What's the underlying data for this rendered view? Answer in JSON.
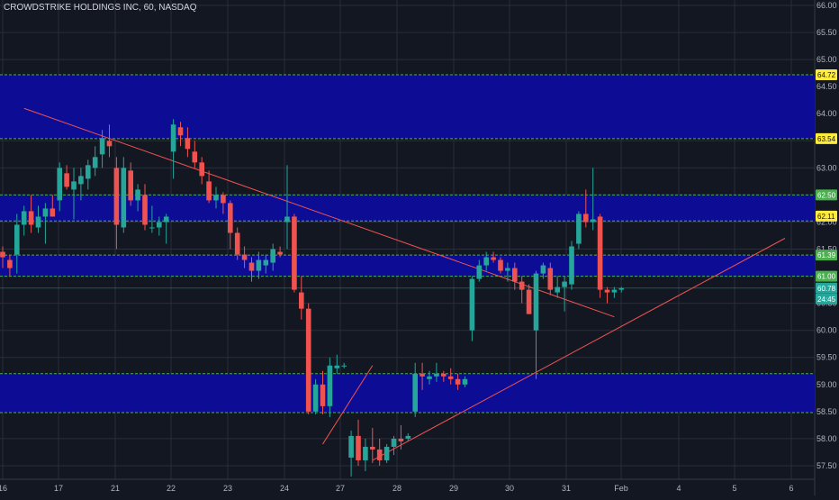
{
  "header": {
    "symbol_title": "CROWDSTRIKE HOLDINGS INC, 60, NASDAQ"
  },
  "colors": {
    "background": "#131722",
    "grid": "#2a2e39",
    "zone": "#0c0c9c",
    "up": "#26a69a",
    "down": "#ef5350",
    "trendline": "#ef5350",
    "level_line": "#4caf50",
    "tag_yellow": "#ffeb3b",
    "tag_green": "#4caf50",
    "tag_teal": "#26a69a"
  },
  "chart_data": {
    "type": "candlestick",
    "x_labels": [
      "16",
      "17",
      "21",
      "22",
      "23",
      "24",
      "27",
      "28",
      "29",
      "30",
      "31",
      "Feb",
      "4",
      "5",
      "6"
    ],
    "y_ticks": [
      "57.50",
      "58.00",
      "58.50",
      "59.00",
      "59.50",
      "60.00",
      "60.50",
      "61.00",
      "61.50",
      "62.00",
      "62.50",
      "63.00",
      "63.50",
      "64.00",
      "64.50",
      "65.00",
      "65.50",
      "66.00"
    ],
    "ylim": [
      57.25,
      66.1
    ],
    "zones": [
      {
        "top": 64.72,
        "bottom": 63.54
      },
      {
        "top": 62.5,
        "bottom": 62.02
      },
      {
        "top": 61.39,
        "bottom": 61.0
      },
      {
        "top": 59.2,
        "bottom": 58.48
      }
    ],
    "price_tags": [
      {
        "label": "64.72",
        "value": 64.72,
        "style": "yellow"
      },
      {
        "label": "63.54",
        "value": 63.54,
        "style": "yellow"
      },
      {
        "label": "62.50",
        "value": 62.5,
        "style": "green"
      },
      {
        "label": "62.11",
        "value": 62.11,
        "style": "yellow"
      },
      {
        "label": "61.39",
        "value": 61.39,
        "style": "green"
      },
      {
        "label": "61.00",
        "value": 61.0,
        "style": "green"
      },
      {
        "label": "60.78",
        "value": 60.78,
        "style": "teal"
      },
      {
        "label": "24:45",
        "value": 60.58,
        "style": "teal"
      }
    ],
    "candles": [
      [
        61.45,
        61.55,
        61.15,
        61.35
      ],
      [
        61.3,
        61.4,
        61.0,
        61.15
      ],
      [
        61.4,
        62.15,
        61.05,
        61.95
      ],
      [
        61.95,
        62.3,
        61.75,
        62.2
      ],
      [
        62.2,
        62.5,
        61.8,
        61.95
      ],
      [
        61.9,
        62.3,
        61.8,
        62.1
      ],
      [
        62.1,
        62.35,
        61.6,
        62.25
      ],
      [
        62.25,
        62.5,
        62.1,
        62.1
      ],
      [
        62.4,
        63.1,
        62.2,
        63.0
      ],
      [
        62.9,
        63.05,
        62.6,
        62.65
      ],
      [
        62.6,
        63.0,
        62.05,
        62.75
      ],
      [
        62.7,
        63.0,
        62.4,
        62.85
      ],
      [
        62.8,
        63.15,
        62.6,
        63.05
      ],
      [
        63.0,
        63.4,
        62.85,
        63.2
      ],
      [
        63.25,
        63.7,
        63.0,
        63.55
      ],
      [
        63.5,
        63.8,
        63.2,
        63.4
      ],
      [
        63.0,
        63.2,
        61.5,
        61.95
      ],
      [
        61.9,
        63.2,
        61.8,
        63.0
      ],
      [
        62.95,
        63.1,
        62.3,
        62.4
      ],
      [
        62.4,
        62.7,
        62.2,
        62.6
      ],
      [
        62.5,
        62.7,
        61.85,
        61.95
      ],
      [
        61.9,
        62.3,
        61.8,
        61.9
      ],
      [
        61.9,
        62.1,
        61.75,
        62.0
      ],
      [
        62.0,
        62.15,
        61.6,
        62.1
      ],
      [
        63.3,
        63.9,
        62.8,
        63.8
      ],
      [
        63.75,
        63.85,
        63.4,
        63.6
      ],
      [
        63.55,
        63.75,
        63.2,
        63.35
      ],
      [
        63.3,
        63.5,
        63.0,
        63.1
      ],
      [
        63.1,
        63.2,
        62.7,
        62.85
      ],
      [
        62.75,
        62.95,
        62.35,
        62.4
      ],
      [
        62.4,
        62.65,
        62.25,
        62.5
      ],
      [
        62.5,
        62.55,
        62.15,
        62.35
      ],
      [
        62.35,
        62.4,
        61.5,
        61.8
      ],
      [
        61.8,
        61.9,
        61.3,
        61.4
      ],
      [
        61.4,
        61.55,
        61.15,
        61.3
      ],
      [
        61.25,
        61.35,
        60.9,
        61.1
      ],
      [
        61.1,
        61.45,
        60.95,
        61.3
      ],
      [
        61.2,
        61.4,
        61.05,
        61.3
      ],
      [
        61.25,
        61.6,
        61.1,
        61.5
      ],
      [
        61.45,
        61.55,
        61.35,
        61.4
      ],
      [
        62.0,
        63.05,
        61.5,
        62.1
      ],
      [
        62.1,
        62.15,
        60.7,
        60.75
      ],
      [
        60.7,
        61.0,
        60.2,
        60.4
      ],
      [
        60.4,
        60.5,
        58.45,
        58.5
      ],
      [
        58.5,
        59.1,
        58.45,
        59.0
      ],
      [
        59.0,
        59.25,
        58.45,
        58.6
      ],
      [
        58.6,
        59.5,
        58.4,
        59.35
      ],
      [
        59.3,
        59.55,
        59.2,
        59.35
      ],
      [
        59.35,
        59.4,
        59.3,
        59.35
      ],
      [
        57.65,
        58.15,
        57.3,
        58.05
      ],
      [
        58.05,
        58.35,
        57.5,
        57.6
      ],
      [
        57.6,
        58.0,
        57.4,
        57.85
      ],
      [
        57.85,
        58.2,
        57.55,
        57.8
      ],
      [
        57.8,
        58.0,
        57.5,
        57.6
      ],
      [
        57.6,
        57.9,
        57.55,
        57.85
      ],
      [
        57.85,
        58.05,
        57.7,
        58.0
      ],
      [
        58.0,
        58.25,
        57.8,
        57.95
      ],
      [
        58.0,
        58.1,
        57.95,
        58.05
      ],
      [
        58.5,
        59.4,
        58.4,
        59.2
      ],
      [
        59.2,
        59.4,
        58.9,
        59.15
      ],
      [
        59.1,
        59.25,
        59.0,
        59.15
      ],
      [
        59.15,
        59.4,
        59.05,
        59.2
      ],
      [
        59.2,
        59.25,
        59.05,
        59.15
      ],
      [
        59.15,
        59.3,
        59.0,
        59.1
      ],
      [
        59.1,
        59.2,
        58.9,
        59.0
      ],
      [
        59.0,
        59.15,
        58.95,
        59.1
      ],
      [
        60.0,
        61.0,
        59.8,
        60.95
      ],
      [
        60.95,
        61.3,
        60.9,
        61.2
      ],
      [
        61.2,
        61.45,
        61.1,
        61.35
      ],
      [
        61.35,
        61.45,
        61.25,
        61.3
      ],
      [
        61.3,
        61.35,
        61.05,
        61.1
      ],
      [
        61.1,
        61.25,
        60.9,
        61.15
      ],
      [
        61.15,
        61.25,
        60.75,
        60.9
      ],
      [
        60.9,
        61.0,
        60.5,
        60.75
      ],
      [
        60.75,
        60.85,
        60.3,
        60.3
      ],
      [
        60.0,
        61.1,
        59.1,
        61.05
      ],
      [
        61.05,
        61.25,
        60.95,
        61.2
      ],
      [
        61.15,
        61.25,
        60.65,
        60.75
      ],
      [
        60.7,
        61.0,
        60.6,
        60.8
      ],
      [
        60.8,
        61.0,
        60.35,
        60.9
      ],
      [
        60.85,
        61.65,
        60.75,
        61.55
      ],
      [
        61.6,
        62.2,
        61.5,
        62.15
      ],
      [
        62.15,
        62.6,
        61.9,
        62.0
      ],
      [
        62.0,
        63.0,
        61.85,
        62.05
      ],
      [
        62.1,
        62.15,
        60.6,
        60.75
      ],
      [
        60.75,
        60.8,
        60.5,
        60.7
      ],
      [
        60.7,
        60.8,
        60.6,
        60.75
      ],
      [
        60.75,
        60.8,
        60.7,
        60.78
      ]
    ],
    "trendlines": [
      {
        "from": [
          3,
          64.1
        ],
        "to": [
          86,
          60.25
        ]
      },
      {
        "from": [
          52,
          57.6
        ],
        "to": [
          110,
          61.7
        ]
      },
      {
        "from": [
          45,
          57.9
        ],
        "to": [
          52,
          59.35
        ]
      }
    ]
  }
}
